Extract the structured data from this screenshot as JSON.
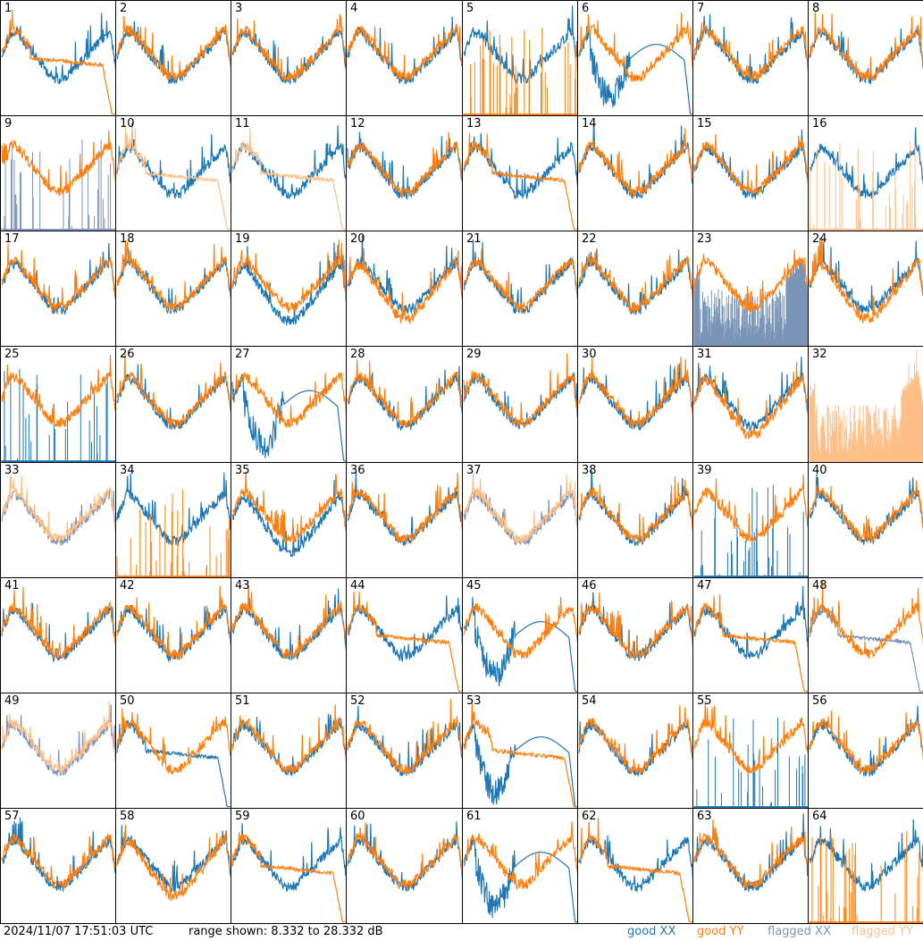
{
  "chart_data": {
    "type": "line",
    "panels": [
      {
        "label": "1",
        "xx": "normal",
        "yy": "rolloff"
      },
      {
        "label": "2",
        "xx": "normal",
        "yy": "normal"
      },
      {
        "label": "3",
        "xx": "normal",
        "yy": "normal"
      },
      {
        "label": "4",
        "xx": "normal",
        "yy": "normal"
      },
      {
        "label": "5",
        "xx": "normal",
        "yy": "spikes"
      },
      {
        "label": "6",
        "xx": "dip",
        "yy": "normal"
      },
      {
        "label": "7",
        "xx": "normal",
        "yy": "normal"
      },
      {
        "label": "8",
        "xx": "normal",
        "yy": "normal"
      },
      {
        "label": "9",
        "xx": "flagged-spikes",
        "yy": "normal"
      },
      {
        "label": "10",
        "xx": "normal",
        "yy": "flagged-rolloff"
      },
      {
        "label": "11",
        "xx": "normal",
        "yy": "flagged-rolloff"
      },
      {
        "label": "12",
        "xx": "normal",
        "yy": "normal"
      },
      {
        "label": "13",
        "xx": "normal",
        "yy": "rolloff"
      },
      {
        "label": "14",
        "xx": "normal",
        "yy": "normal"
      },
      {
        "label": "15",
        "xx": "normal",
        "yy": "normal"
      },
      {
        "label": "16",
        "xx": "normal",
        "yy": "flagged-spikes"
      },
      {
        "label": "17",
        "xx": "normal",
        "yy": "normal"
      },
      {
        "label": "18",
        "xx": "normal",
        "yy": "normal"
      },
      {
        "label": "19",
        "xx": "low",
        "yy": "normal"
      },
      {
        "label": "20",
        "xx": "normal",
        "yy": "low"
      },
      {
        "label": "21",
        "xx": "normal",
        "yy": "normal"
      },
      {
        "label": "22",
        "xx": "normal",
        "yy": "normal"
      },
      {
        "label": "23",
        "xx": "flagged-noisy",
        "yy": "normal"
      },
      {
        "label": "24",
        "xx": "normal",
        "yy": "low"
      },
      {
        "label": "25",
        "xx": "spikes",
        "yy": "normal"
      },
      {
        "label": "26",
        "xx": "normal",
        "yy": "normal"
      },
      {
        "label": "27",
        "xx": "dip",
        "yy": "normal"
      },
      {
        "label": "28",
        "xx": "normal",
        "yy": "normal"
      },
      {
        "label": "29",
        "xx": "normal",
        "yy": "normal"
      },
      {
        "label": "30",
        "xx": "normal",
        "yy": "normal"
      },
      {
        "label": "31",
        "xx": "normal",
        "yy": "low"
      },
      {
        "label": "32",
        "xx": "none",
        "yy": "flagged-noisy"
      },
      {
        "label": "33",
        "xx": "flagged",
        "yy": "flagged"
      },
      {
        "label": "34",
        "xx": "normal",
        "yy": "spikes"
      },
      {
        "label": "35",
        "xx": "low",
        "yy": "normal"
      },
      {
        "label": "36",
        "xx": "normal",
        "yy": "normal"
      },
      {
        "label": "37",
        "xx": "flagged",
        "yy": "flagged"
      },
      {
        "label": "38",
        "xx": "normal",
        "yy": "normal"
      },
      {
        "label": "39",
        "xx": "spikes",
        "yy": "normal"
      },
      {
        "label": "40",
        "xx": "normal",
        "yy": "normal"
      },
      {
        "label": "41",
        "xx": "normal",
        "yy": "normal"
      },
      {
        "label": "42",
        "xx": "normal",
        "yy": "normal"
      },
      {
        "label": "43",
        "xx": "normal",
        "yy": "normal"
      },
      {
        "label": "44",
        "xx": "normal",
        "yy": "rolloff"
      },
      {
        "label": "45",
        "xx": "dip",
        "yy": "normal"
      },
      {
        "label": "46",
        "xx": "normal",
        "yy": "normal"
      },
      {
        "label": "47",
        "xx": "normal",
        "yy": "rolloff"
      },
      {
        "label": "48",
        "xx": "flagged-rolloff",
        "yy": "normal"
      },
      {
        "label": "49",
        "xx": "flagged",
        "yy": "flagged"
      },
      {
        "label": "50",
        "xx": "rolloff",
        "yy": "normal"
      },
      {
        "label": "51",
        "xx": "normal",
        "yy": "normal"
      },
      {
        "label": "52",
        "xx": "normal",
        "yy": "normal"
      },
      {
        "label": "53",
        "xx": "dip",
        "yy": "rolloff"
      },
      {
        "label": "54",
        "xx": "normal",
        "yy": "normal"
      },
      {
        "label": "55",
        "xx": "spikes",
        "yy": "normal"
      },
      {
        "label": "56",
        "xx": "normal",
        "yy": "normal"
      },
      {
        "label": "57",
        "xx": "normal",
        "yy": "normal"
      },
      {
        "label": "58",
        "xx": "normal",
        "yy": "low"
      },
      {
        "label": "59",
        "xx": "normal",
        "yy": "rolloff"
      },
      {
        "label": "60",
        "xx": "normal",
        "yy": "normal"
      },
      {
        "label": "61",
        "xx": "dip",
        "yy": "normal"
      },
      {
        "label": "62",
        "xx": "normal",
        "yy": "rolloff"
      },
      {
        "label": "63",
        "xx": "normal",
        "yy": "normal"
      },
      {
        "label": "64",
        "xx": "normal",
        "yy": "spikes"
      }
    ],
    "ylim": [
      8.332,
      28.332
    ],
    "grid_rows": 8,
    "grid_cols": 8
  },
  "footer": {
    "timestamp": "2024/11/07 17:51:03 UTC",
    "range_text": "range shown: 8.332 to 28.332 dB",
    "legend": {
      "good_xx": "good XX",
      "good_yy": "good YY",
      "flagged_xx": "flagged XX",
      "flagged_yy": "flagged YY"
    }
  },
  "colors": {
    "good_xx": "#1f77b4",
    "good_yy": "#ff7f0e",
    "flagged_xx": "#7a94b8",
    "flagged_yy": "#ffbf87"
  }
}
